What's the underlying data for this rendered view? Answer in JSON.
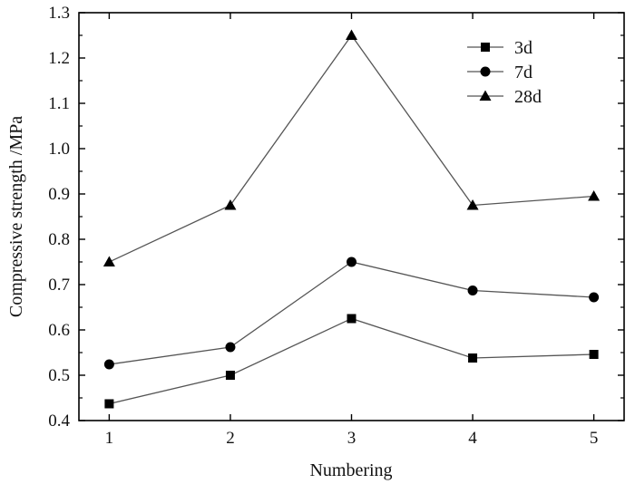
{
  "chart_data": {
    "type": "line",
    "title": "",
    "xlabel": "Numbering",
    "ylabel": "Compressive strength /MPa",
    "x": [
      1,
      2,
      3,
      4,
      5
    ],
    "x_ticks": [
      "1",
      "2",
      "3",
      "4",
      "5"
    ],
    "xlim": [
      0.75,
      5.25
    ],
    "ylim": [
      0.4,
      1.3
    ],
    "y_ticks": [
      "0.4",
      "0.5",
      "0.6",
      "0.7",
      "0.8",
      "0.9",
      "1.0",
      "1.1",
      "1.2",
      "1.3"
    ],
    "grid": false,
    "legend_position": "top-right",
    "series": [
      {
        "name": "3d",
        "marker": "square",
        "values": [
          0.437,
          0.5,
          0.625,
          0.538,
          0.546
        ]
      },
      {
        "name": "7d",
        "marker": "circle",
        "values": [
          0.524,
          0.562,
          0.75,
          0.687,
          0.672
        ]
      },
      {
        "name": "28d",
        "marker": "triangle",
        "values": [
          0.75,
          0.875,
          1.25,
          0.875,
          0.895
        ]
      }
    ],
    "colors": {
      "line": "#555555",
      "marker": "#000000",
      "axis": "#000000",
      "text": "#111111"
    }
  }
}
